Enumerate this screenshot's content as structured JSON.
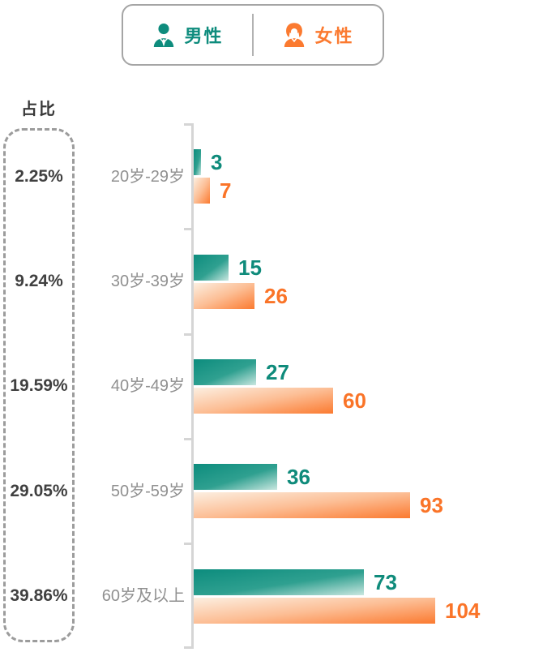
{
  "legend": {
    "male_label": "男性",
    "female_label": "女性",
    "male_color": "#0E8C7D",
    "female_color": "#FB7A30"
  },
  "ratio_title": "占比",
  "groups": [
    {
      "percent": "2.25%",
      "category": "20岁-29岁",
      "male": "3",
      "female": "7"
    },
    {
      "percent": "9.24%",
      "category": "30岁-39岁",
      "male": "15",
      "female": "26"
    },
    {
      "percent": "19.59%",
      "category": "40岁-49岁",
      "male": "27",
      "female": "60"
    },
    {
      "percent": "29.05%",
      "category": "50岁-59岁",
      "male": "36",
      "female": "93"
    },
    {
      "percent": "39.86%",
      "category": "60岁及以上",
      "male": "73",
      "female": "104"
    }
  ],
  "chart_data": {
    "type": "bar",
    "orientation": "horizontal",
    "title": "",
    "ylabel": "占比",
    "categories": [
      "20岁-29岁",
      "30岁-39岁",
      "40岁-49岁",
      "50岁-59岁",
      "60岁及以上"
    ],
    "series": [
      {
        "name": "男性",
        "color": "#0E8C7D",
        "values": [
          3,
          15,
          27,
          36,
          73
        ]
      },
      {
        "name": "女性",
        "color": "#FB7A30",
        "values": [
          7,
          26,
          60,
          93,
          104
        ]
      }
    ],
    "category_percentages": [
      "2.25%",
      "9.24%",
      "19.59%",
      "29.05%",
      "39.86%"
    ],
    "xlim": [
      0,
      110
    ],
    "grid": false,
    "legend_position": "top",
    "value_labels_shown": true
  }
}
